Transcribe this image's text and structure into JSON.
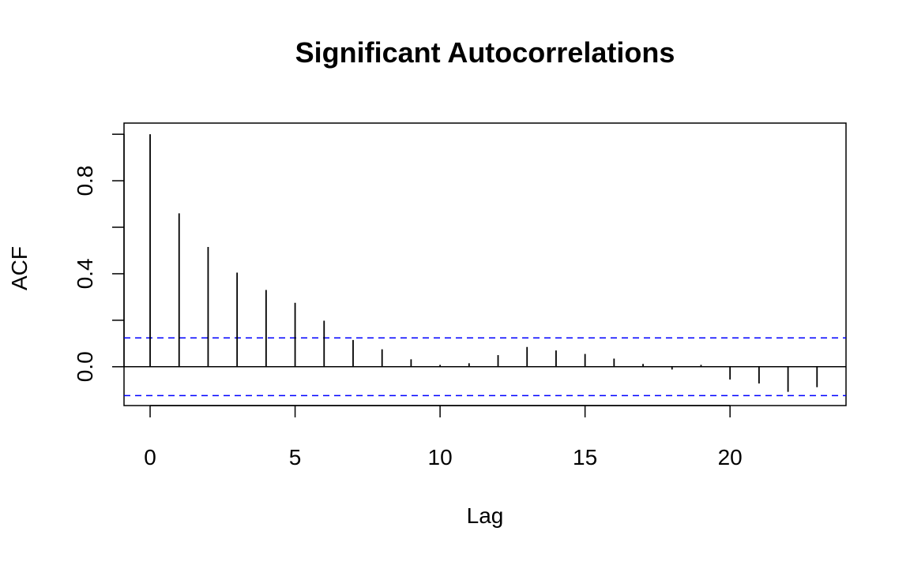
{
  "chart_data": {
    "type": "bar",
    "title": "Significant Autocorrelations",
    "xlabel": "Lag",
    "ylabel": "ACF",
    "x": [
      0,
      1,
      2,
      3,
      4,
      5,
      6,
      7,
      8,
      9,
      10,
      11,
      12,
      13,
      14,
      15,
      16,
      17,
      18,
      19,
      20,
      21,
      22,
      23
    ],
    "values": [
      1.0,
      0.66,
      0.515,
      0.405,
      0.33,
      0.275,
      0.198,
      0.115,
      0.075,
      0.032,
      0.008,
      0.015,
      0.05,
      0.085,
      0.07,
      0.055,
      0.035,
      0.012,
      -0.012,
      0.008,
      -0.055,
      -0.072,
      -0.108,
      -0.088
    ],
    "confidence_band": [
      -0.124,
      0.124
    ],
    "xlim": [
      -0.9,
      24
    ],
    "ylim": [
      -0.167,
      1.048
    ],
    "x_ticks": [
      0,
      5,
      10,
      15,
      20
    ],
    "x_tick_labels": [
      "0",
      "5",
      "10",
      "15",
      "20"
    ],
    "y_ticks": [
      0.0,
      0.2,
      0.4,
      0.6,
      0.8,
      1.0
    ],
    "y_tick_labels": [
      "0.0",
      "",
      "0.4",
      "",
      "0.8",
      ""
    ],
    "grid": false,
    "colors": {
      "bars": "#000000",
      "confidence_band": "#0000ff",
      "zero_line": "#000000"
    }
  }
}
